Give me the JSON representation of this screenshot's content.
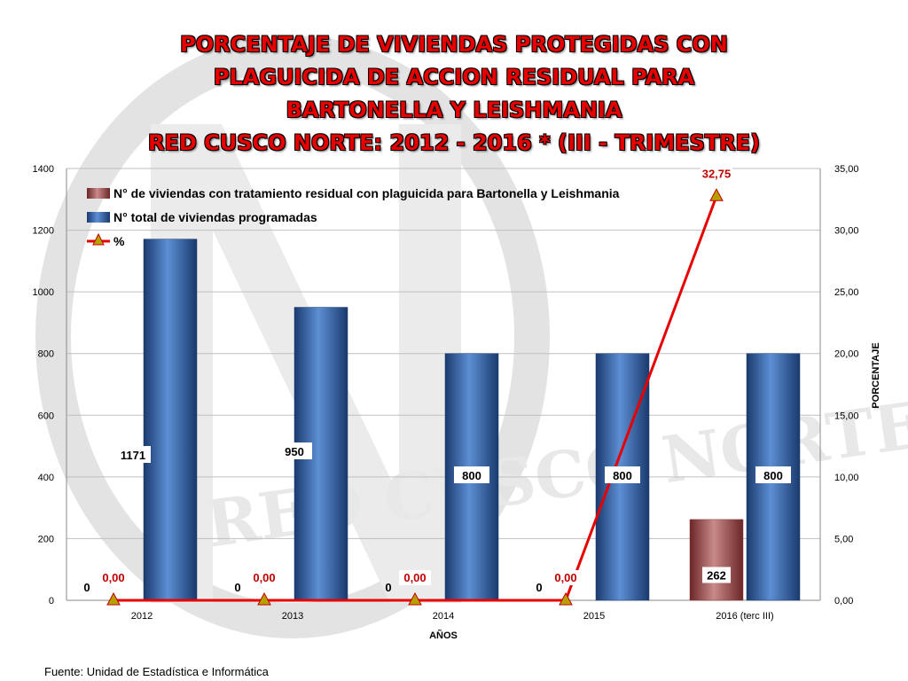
{
  "title_lines": [
    "PORCENTAJE DE VIVIENDAS PROTEGIDAS CON",
    "PLAGUICIDA DE ACCION RESIDUAL PARA",
    "BARTONELLA Y LEISHMANIA",
    "RED CUSCO NORTE: 2012 - 2016 * (III - TRIMESTRE)"
  ],
  "watermark_text": "RED CUSCO NORTE",
  "source": "Fuente: Unidad de Estadística e Informática",
  "colors": {
    "title": "#e60000",
    "treated_bar": "#8c3a3a",
    "programmed_bar": "#2e5c9e",
    "percent_line": "#e60000",
    "percent_label": "#c00000",
    "marker": "#b8a000"
  },
  "chart_data": {
    "type": "bar",
    "categories": [
      "2012",
      "2013",
      "2014",
      "2015",
      "2016 (terc III)"
    ],
    "xlabel": "AÑOS",
    "ylabel_right": "PORCENTAJE",
    "ylim_left": [
      0,
      1400
    ],
    "ylim_right": [
      0,
      35
    ],
    "left_ticks": [
      "0",
      "200",
      "400",
      "600",
      "800",
      "1000",
      "1200",
      "1400"
    ],
    "right_ticks": [
      "0,00",
      "5,00",
      "10,00",
      "15,00",
      "20,00",
      "25,00",
      "30,00",
      "35,00"
    ],
    "legend_position": "top-left",
    "series": [
      {
        "name": "N° de viviendas con tratamiento residual con plaguicida  para Bartonella y Leishmania",
        "type": "bar",
        "axis": "left",
        "values": [
          0,
          0,
          0,
          0,
          262
        ],
        "labels": [
          "0",
          "0",
          "0",
          "0",
          "262"
        ]
      },
      {
        "name": "N° total de viviendas programadas",
        "type": "bar",
        "axis": "left",
        "values": [
          1171,
          950,
          800,
          800,
          800
        ],
        "labels": [
          "1171",
          "950",
          "800",
          "800",
          "800"
        ]
      },
      {
        "name": "%",
        "type": "line",
        "axis": "right",
        "values": [
          0,
          0,
          0,
          0,
          32.75
        ],
        "labels": [
          "0,00",
          "0,00",
          "0,00",
          "0,00",
          "32,75"
        ]
      }
    ]
  }
}
